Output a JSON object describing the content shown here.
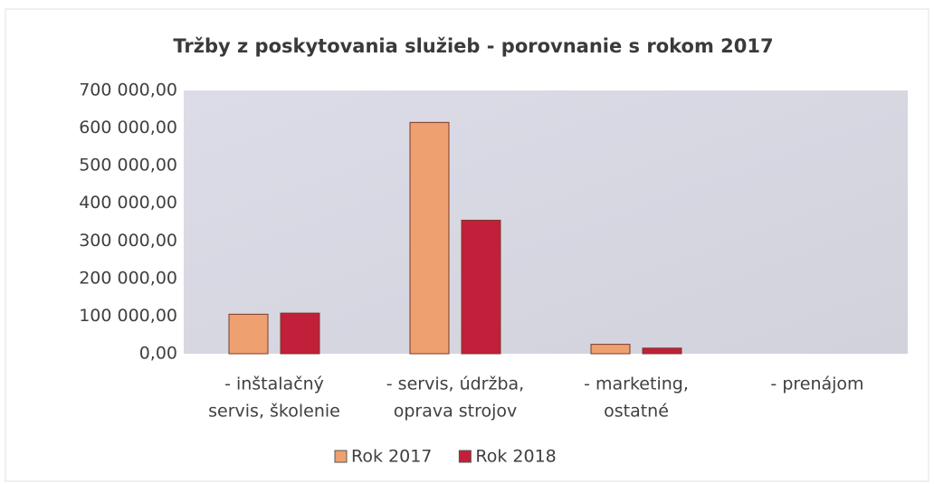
{
  "chart_data": {
    "type": "bar",
    "title": "Tržby z poskytovania služieb - porovnanie s rokom 2017",
    "categories": [
      [
        "- inštalačný",
        "servis, školenie"
      ],
      [
        "- servis, údržba,",
        "oprava strojov"
      ],
      [
        "- marketing,",
        "ostatné"
      ],
      [
        "- prenájom"
      ]
    ],
    "series": [
      {
        "name": "Rok 2017",
        "color": "#eea070",
        "values": [
          105000,
          615000,
          25000,
          0
        ]
      },
      {
        "name": "Rok 2018",
        "color": "#c11f3a",
        "values": [
          108000,
          355000,
          15000,
          0
        ]
      }
    ],
    "ylim": [
      0,
      700000
    ],
    "yticks": [
      {
        "value": 0,
        "label": "0,00"
      },
      {
        "value": 100000,
        "label": "100 000,00"
      },
      {
        "value": 200000,
        "label": "200 000,00"
      },
      {
        "value": 300000,
        "label": "300 000,00"
      },
      {
        "value": 400000,
        "label": "400 000,00"
      },
      {
        "value": 500000,
        "label": "500 000,00"
      },
      {
        "value": 600000,
        "label": "600 000,00"
      },
      {
        "value": 700000,
        "label": "700 000,00"
      }
    ],
    "grid": false,
    "legend": "bottom"
  }
}
